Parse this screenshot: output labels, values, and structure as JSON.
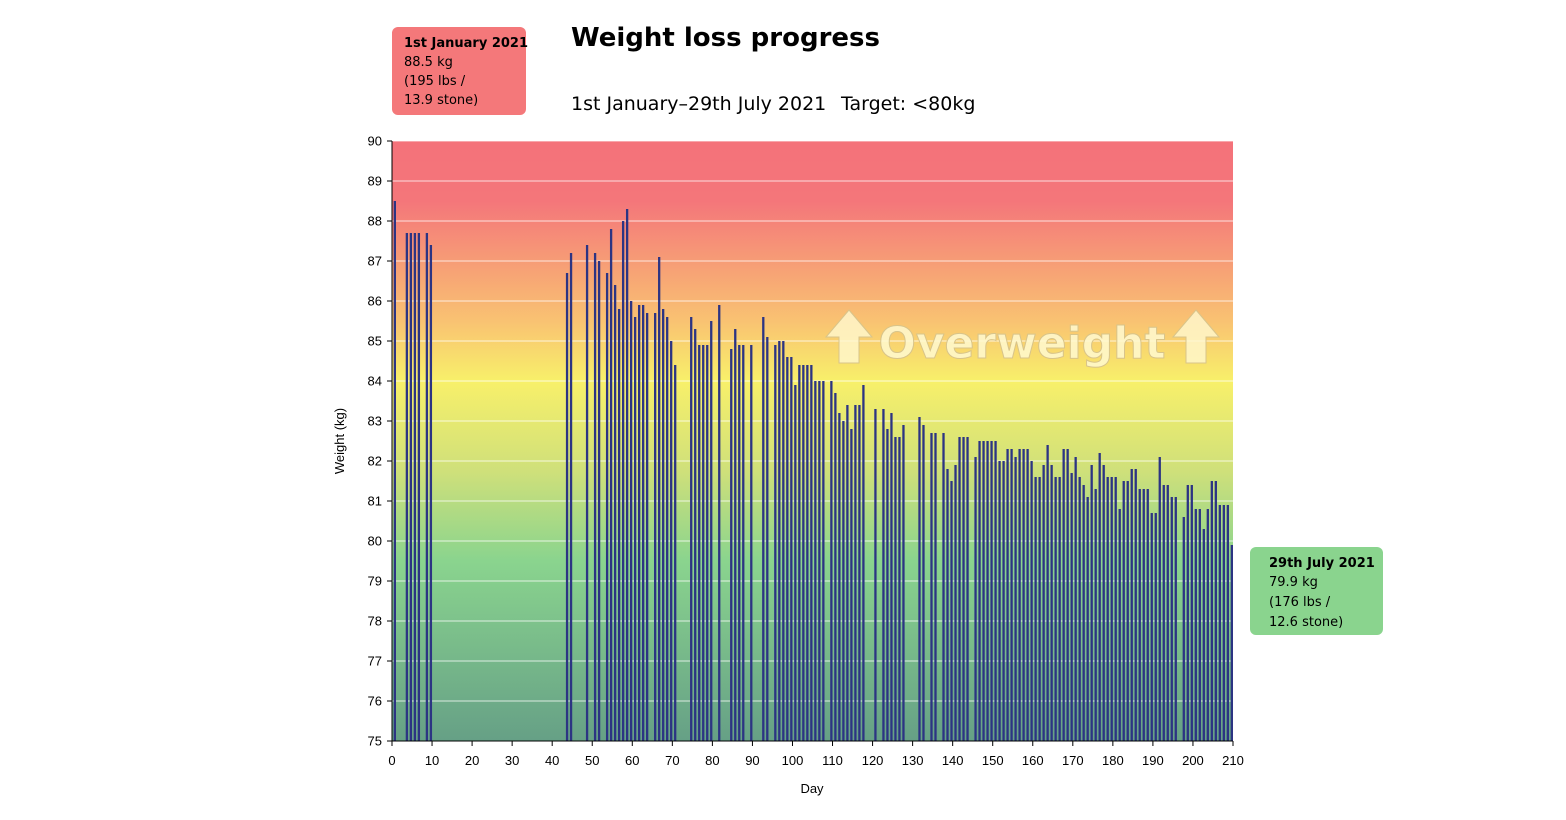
{
  "colors": {
    "bar": "#2c3483",
    "bg_top": "#f4727a",
    "bg_yellow": "#f8f06a",
    "bg_green": "#8ad48e",
    "bg_bottom": "#66a086",
    "start_card": "#f4787a",
    "end_card": "#8ad48e"
  },
  "overlay": {
    "text": "Overweight",
    "arrow_icon": "up-arrow-icon"
  },
  "start_card": {
    "title": "1st January 2021",
    "lines": [
      "88.5 kg",
      "(195 lbs /",
      "13.9 stone)"
    ]
  },
  "end_card": {
    "title": "29th July 2021",
    "lines": [
      "79.9 kg",
      "(176 lbs /",
      "12.6 stone)"
    ]
  },
  "chart_data": {
    "type": "bar",
    "title": "Weight loss progress",
    "subtitle": "1st January–29th July 2021",
    "target": "Target: <80kg",
    "xlabel": "Day",
    "ylabel": "Weight (kg)",
    "xlim": [
      0,
      210
    ],
    "ylim": [
      75,
      90
    ],
    "xticks": [
      0,
      10,
      20,
      30,
      40,
      50,
      60,
      70,
      80,
      90,
      100,
      110,
      120,
      130,
      140,
      150,
      160,
      170,
      180,
      190,
      200,
      210
    ],
    "yticks": [
      75,
      76,
      77,
      78,
      79,
      80,
      81,
      82,
      83,
      84,
      85,
      86,
      87,
      88,
      89,
      90
    ],
    "grid": true,
    "x": [
      1,
      4,
      5,
      6,
      7,
      9,
      10,
      44,
      45,
      49,
      51,
      52,
      54,
      55,
      56,
      57,
      58,
      59,
      60,
      61,
      62,
      63,
      64,
      66,
      67,
      68,
      69,
      70,
      71,
      75,
      76,
      77,
      78,
      79,
      80,
      82,
      85,
      86,
      87,
      88,
      90,
      93,
      94,
      96,
      97,
      98,
      99,
      100,
      101,
      102,
      103,
      104,
      105,
      106,
      107,
      108,
      110,
      111,
      112,
      113,
      114,
      115,
      116,
      117,
      118,
      121,
      123,
      124,
      125,
      126,
      127,
      128,
      132,
      133,
      135,
      136,
      138,
      139,
      140,
      141,
      142,
      143,
      144,
      146,
      147,
      148,
      149,
      150,
      151,
      152,
      153,
      154,
      155,
      156,
      157,
      158,
      159,
      160,
      161,
      162,
      163,
      164,
      165,
      166,
      167,
      168,
      169,
      170,
      171,
      172,
      173,
      174,
      175,
      176,
      177,
      178,
      179,
      180,
      181,
      182,
      183,
      184,
      185,
      186,
      187,
      188,
      189,
      190,
      191,
      192,
      193,
      194,
      195,
      196,
      198,
      199,
      200,
      201,
      202,
      203,
      204,
      205,
      206,
      207,
      208,
      209,
      210
    ],
    "values": [
      88.5,
      87.7,
      87.7,
      87.7,
      87.7,
      87.7,
      87.4,
      86.7,
      87.2,
      87.4,
      87.2,
      87.0,
      86.7,
      87.8,
      86.4,
      85.8,
      88.0,
      88.3,
      86.0,
      85.6,
      85.9,
      85.9,
      85.7,
      85.7,
      87.1,
      85.8,
      85.6,
      85.0,
      84.4,
      85.6,
      85.3,
      84.9,
      84.9,
      84.9,
      85.5,
      85.9,
      84.8,
      85.3,
      84.9,
      84.9,
      84.9,
      85.6,
      85.1,
      84.9,
      85.0,
      85.0,
      84.6,
      84.6,
      83.9,
      84.4,
      84.4,
      84.4,
      84.4,
      84.0,
      84.0,
      84.0,
      84.0,
      83.7,
      83.2,
      83.0,
      83.4,
      82.8,
      83.4,
      83.4,
      83.9,
      83.3,
      83.3,
      82.8,
      83.2,
      82.6,
      82.6,
      82.9,
      83.1,
      82.9,
      82.7,
      82.7,
      82.7,
      81.8,
      81.5,
      81.9,
      82.6,
      82.6,
      82.6,
      82.1,
      82.5,
      82.5,
      82.5,
      82.5,
      82.5,
      82.0,
      82.0,
      82.3,
      82.3,
      82.1,
      82.3,
      82.3,
      82.3,
      82.0,
      81.6,
      81.6,
      81.9,
      82.4,
      81.9,
      81.6,
      81.6,
      82.3,
      82.3,
      81.7,
      82.1,
      81.6,
      81.4,
      81.1,
      81.9,
      81.3,
      82.2,
      81.9,
      81.6,
      81.6,
      81.6,
      80.8,
      81.5,
      81.5,
      81.8,
      81.8,
      81.3,
      81.3,
      81.3,
      80.7,
      80.7,
      82.1,
      81.4,
      81.4,
      81.1,
      81.1,
      80.6,
      81.4,
      81.4,
      80.8,
      80.8,
      80.3,
      80.8,
      81.5,
      81.5,
      80.9,
      80.9,
      80.9,
      79.9
    ]
  }
}
